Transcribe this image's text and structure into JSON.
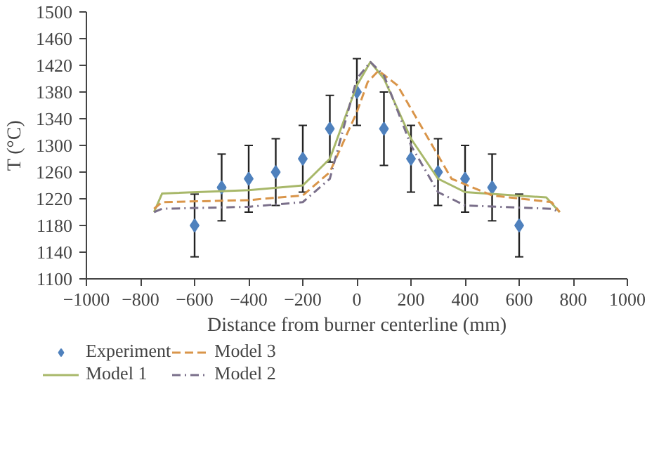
{
  "chart_data": {
    "type": "line",
    "xlabel": "Distance from burner centerline (mm)",
    "ylabel": "T (°C)",
    "xlim": [
      -1000,
      1000
    ],
    "xticks": [
      -1000,
      -800,
      -600,
      -400,
      -200,
      0,
      200,
      400,
      600,
      800,
      1000
    ],
    "ylim": [
      1100,
      1500
    ],
    "yticks": [
      1100,
      1140,
      1180,
      1220,
      1260,
      1300,
      1340,
      1380,
      1420,
      1460,
      1500
    ],
    "grid": false,
    "legend": "bottom",
    "series": [
      {
        "name": "Experiment",
        "type": "scatter",
        "marker": "diamond",
        "color": "#4f81bd",
        "x": [
          -600,
          -500,
          -400,
          -300,
          -200,
          -100,
          0,
          100,
          200,
          300,
          400,
          500,
          600
        ],
        "values": [
          1180,
          1237,
          1250,
          1260,
          1280,
          1325,
          1380,
          1325,
          1280,
          1260,
          1250,
          1237,
          1180
        ],
        "errors": [
          47,
          50,
          50,
          50,
          50,
          50,
          50,
          55,
          50,
          50,
          50,
          50,
          47
        ]
      },
      {
        "name": "Model 1",
        "line_style": "solid",
        "color": "#a8b86a",
        "x": [
          -750,
          -720,
          -400,
          -200,
          -100,
          0,
          50,
          100,
          200,
          300,
          400,
          700,
          750
        ],
        "values": [
          1200,
          1228,
          1233,
          1240,
          1280,
          1390,
          1425,
          1400,
          1310,
          1250,
          1230,
          1222,
          1200
        ]
      },
      {
        "name": "Model 3",
        "line_style": "dashed",
        "color": "#d9954a",
        "x": [
          -750,
          -720,
          -400,
          -200,
          -100,
          0,
          40,
          80,
          150,
          250,
          350,
          500,
          720,
          750
        ],
        "values": [
          1205,
          1215,
          1218,
          1225,
          1260,
          1350,
          1395,
          1412,
          1390,
          1320,
          1250,
          1225,
          1215,
          1200
        ]
      },
      {
        "name": "Model 2",
        "line_style": "dashdot",
        "color": "#7a6f8a",
        "x": [
          -750,
          -720,
          -400,
          -200,
          -100,
          0,
          50,
          100,
          200,
          300,
          400,
          720,
          750
        ],
        "values": [
          1200,
          1205,
          1208,
          1215,
          1250,
          1400,
          1425,
          1405,
          1300,
          1230,
          1210,
          1205,
          1200
        ]
      }
    ]
  }
}
